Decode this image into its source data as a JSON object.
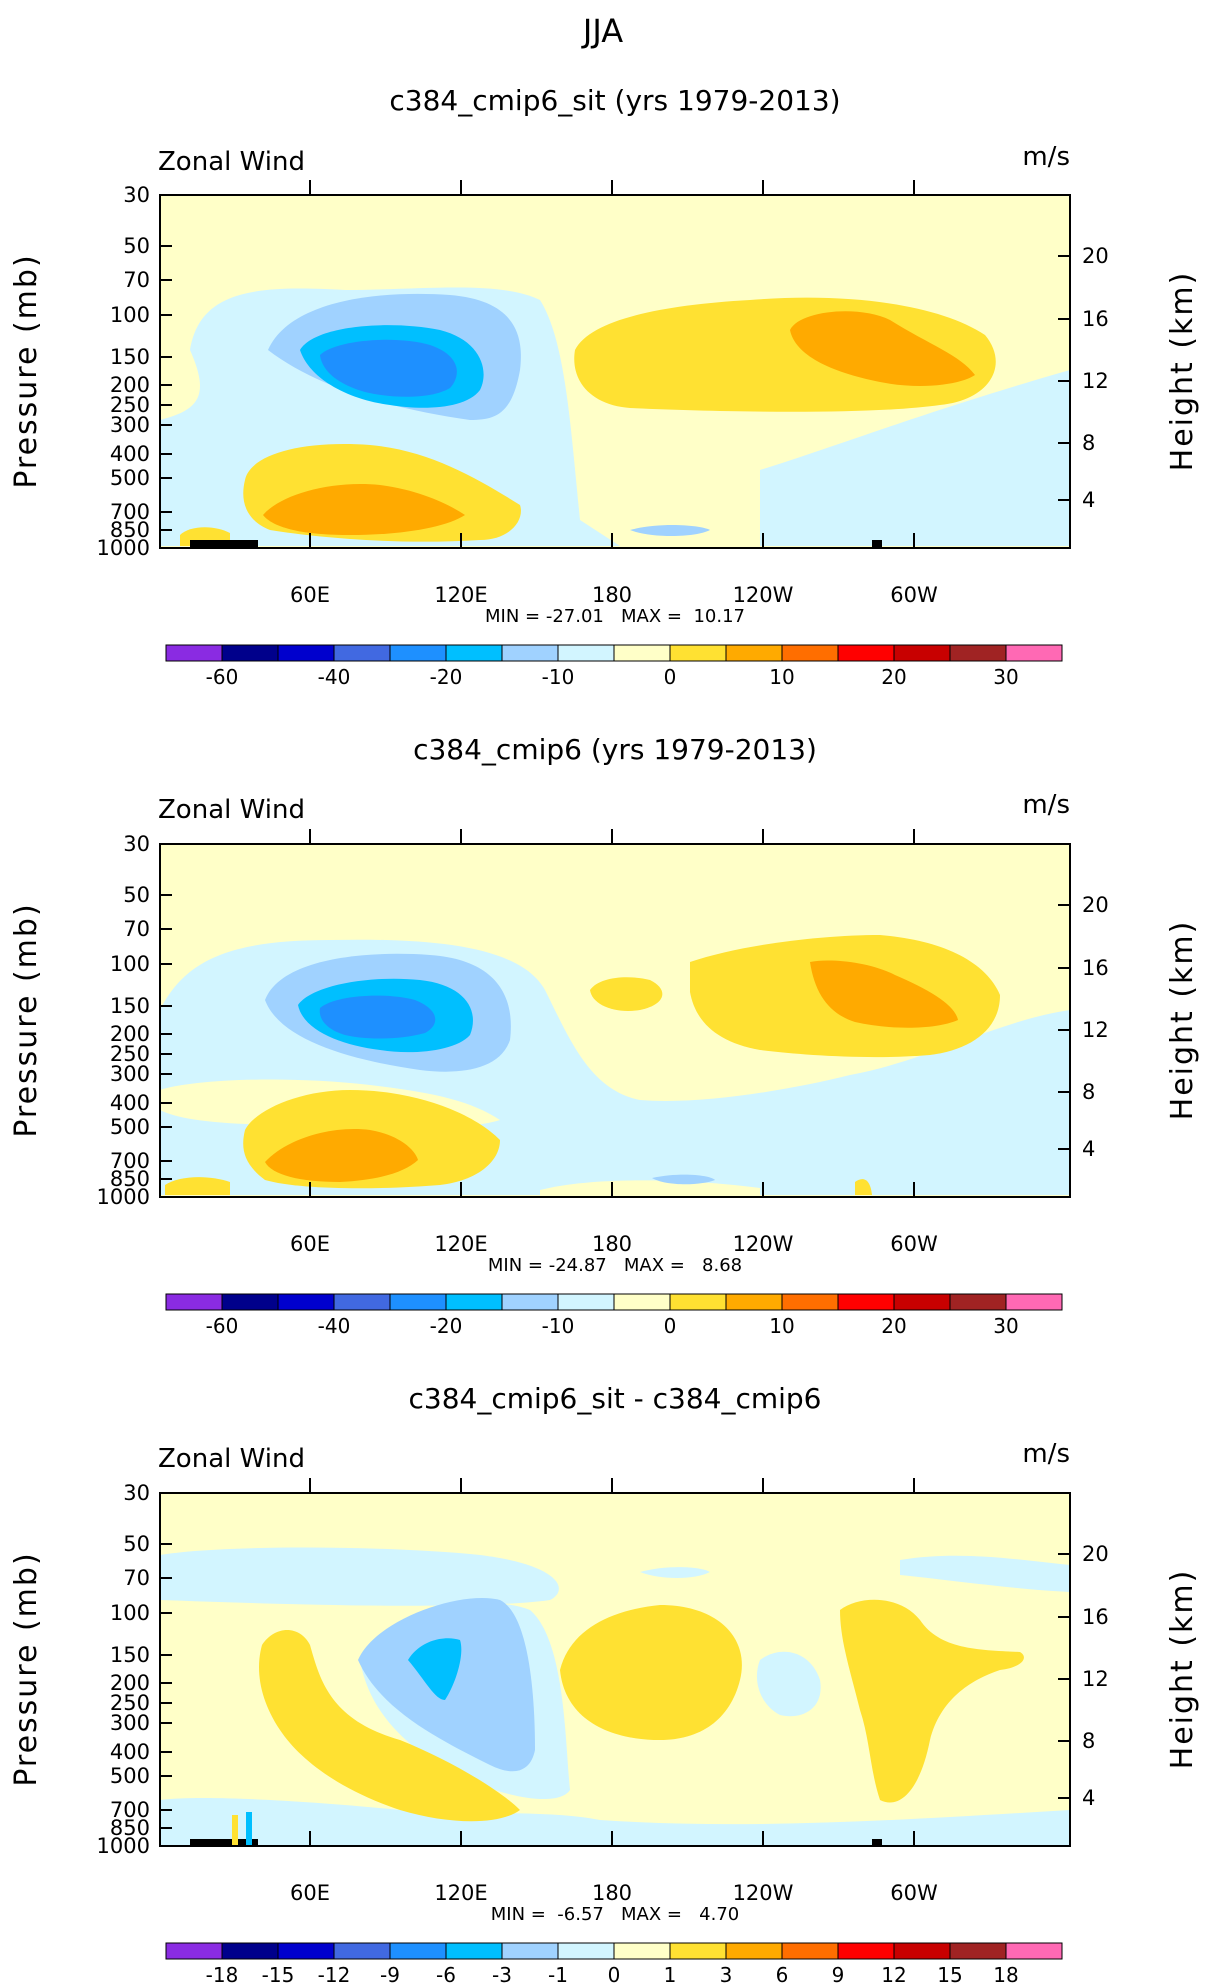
{
  "super_title": "JJA",
  "chart_data": [
    {
      "type": "contour",
      "title": "c384_cmip6_sit (yrs 1979-2013)",
      "left_label": "Zonal Wind",
      "right_label": "m/s",
      "ylabel": "Pressure (mb)",
      "y2label": "Height (km)",
      "yticks": [
        "30",
        "50",
        "70",
        "100",
        "150",
        "200",
        "250",
        "300",
        "400",
        "500",
        "700",
        "850",
        "1000"
      ],
      "y2ticks": [
        "20",
        "16",
        "12",
        "8",
        "4"
      ],
      "xticks": [
        "60E",
        "120E",
        "180",
        "120W",
        "60W"
      ],
      "min": "-27.01",
      "max": "10.17",
      "stats_text": "MIN = -27.01   MAX =  10.17",
      "colorbar": {
        "colors": [
          "#8a2be2",
          "#00008b",
          "#0000cd",
          "#4169e1",
          "#1e90ff",
          "#00bfff",
          "#a0d2ff",
          "#d2f5ff",
          "#ffffc8",
          "#ffe132",
          "#ffaa00",
          "#ff6e00",
          "#ff0000",
          "#c80000",
          "#a02323",
          "#ff69b4"
        ],
        "ticks": [
          "-60",
          "-40",
          "-20",
          "-10",
          "0",
          "10",
          "20",
          "30"
        ]
      }
    },
    {
      "type": "contour",
      "title": "c384_cmip6 (yrs 1979-2013)",
      "left_label": "Zonal Wind",
      "right_label": "m/s",
      "ylabel": "Pressure (mb)",
      "y2label": "Height (km)",
      "yticks": [
        "30",
        "50",
        "70",
        "100",
        "150",
        "200",
        "250",
        "300",
        "400",
        "500",
        "700",
        "850",
        "1000"
      ],
      "y2ticks": [
        "20",
        "16",
        "12",
        "8",
        "4"
      ],
      "xticks": [
        "60E",
        "120E",
        "180",
        "120W",
        "60W"
      ],
      "min": "-24.87",
      "max": "8.68",
      "stats_text": "MIN = -24.87   MAX =   8.68",
      "colorbar": {
        "colors": [
          "#8a2be2",
          "#00008b",
          "#0000cd",
          "#4169e1",
          "#1e90ff",
          "#00bfff",
          "#a0d2ff",
          "#d2f5ff",
          "#ffffc8",
          "#ffe132",
          "#ffaa00",
          "#ff6e00",
          "#ff0000",
          "#c80000",
          "#a02323",
          "#ff69b4"
        ],
        "ticks": [
          "-60",
          "-40",
          "-20",
          "-10",
          "0",
          "10",
          "20",
          "30"
        ]
      }
    },
    {
      "type": "contour",
      "title": "c384_cmip6_sit - c384_cmip6",
      "left_label": "Zonal Wind",
      "right_label": "m/s",
      "ylabel": "Pressure (mb)",
      "y2label": "Height (km)",
      "yticks": [
        "30",
        "50",
        "70",
        "100",
        "150",
        "200",
        "250",
        "300",
        "400",
        "500",
        "700",
        "850",
        "1000"
      ],
      "y2ticks": [
        "20",
        "16",
        "12",
        "8",
        "4"
      ],
      "xticks": [
        "60E",
        "120E",
        "180",
        "120W",
        "60W"
      ],
      "min": "-6.57",
      "max": "4.70",
      "stats_text": "MIN =  -6.57   MAX =   4.70",
      "colorbar": {
        "colors": [
          "#8a2be2",
          "#00008b",
          "#0000cd",
          "#4169e1",
          "#1e90ff",
          "#00bfff",
          "#a0d2ff",
          "#d2f5ff",
          "#ffffc8",
          "#ffe132",
          "#ffaa00",
          "#ff6e00",
          "#ff0000",
          "#c80000",
          "#a02323",
          "#ff69b4"
        ],
        "ticks": [
          "-18",
          "-15",
          "-12",
          "-9",
          "-6",
          "-3",
          "-1",
          "0",
          "1",
          "3",
          "6",
          "9",
          "12",
          "15",
          "18"
        ]
      }
    }
  ]
}
